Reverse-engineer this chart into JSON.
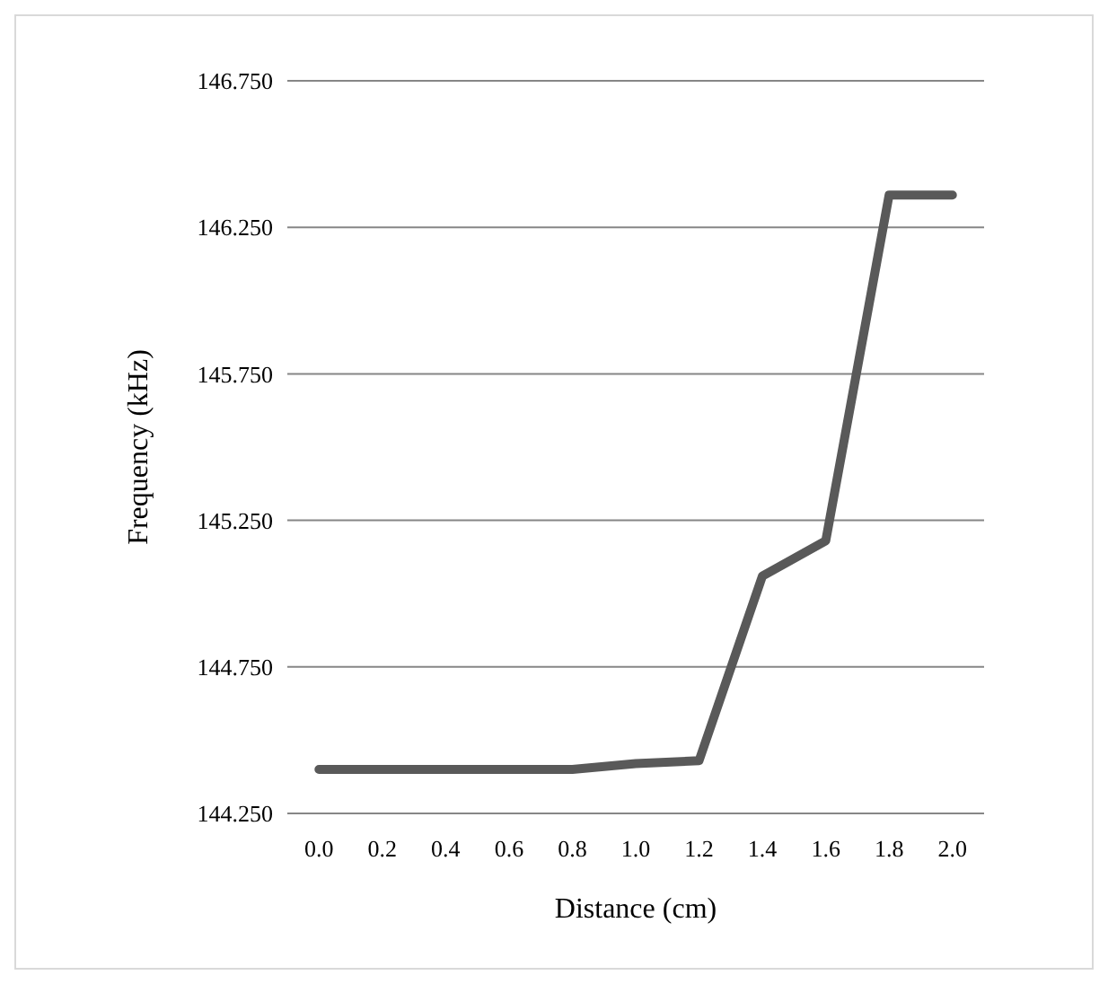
{
  "chart_data": {
    "type": "line",
    "xlabel": "Distance (cm)",
    "ylabel": "Frequency (kHz)",
    "categories": [
      "0.0",
      "0.2",
      "0.4",
      "0.6",
      "0.8",
      "1.0",
      "1.2",
      "1.4",
      "1.6",
      "1.8",
      "2.0"
    ],
    "series": [
      {
        "color": "#595959",
        "values": [
          144.4,
          144.4,
          144.4,
          144.4,
          144.4,
          144.42,
          144.43,
          145.06,
          145.18,
          146.36,
          146.36
        ]
      }
    ],
    "ylim": [
      144.25,
      146.75
    ],
    "yticks": [
      {
        "value": 144.25,
        "label": "144.250"
      },
      {
        "value": 144.75,
        "label": "144.750"
      },
      {
        "value": 145.25,
        "label": "145.250"
      },
      {
        "value": 145.75,
        "label": "145.750"
      },
      {
        "value": 146.25,
        "label": "146.250"
      },
      {
        "value": 146.75,
        "label": "146.750"
      }
    ],
    "grid": "y",
    "marker": "none",
    "line_style": "solid"
  }
}
